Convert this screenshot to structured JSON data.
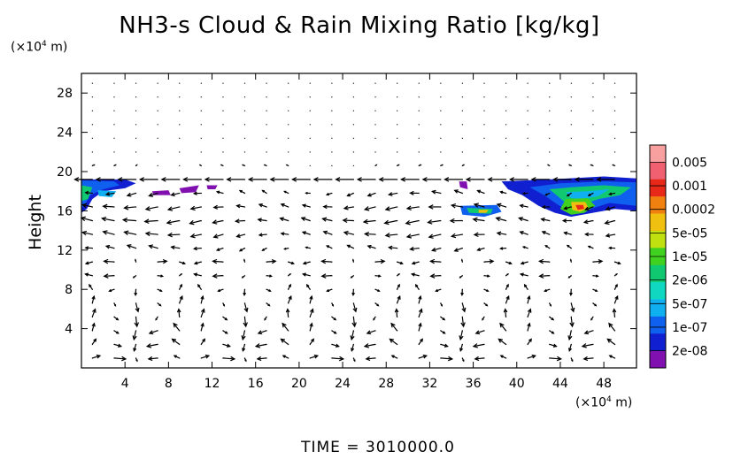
{
  "header": {
    "title": "NH3-s Cloud & Rain Mixing Ratio [kg/kg]",
    "y_unit_prefix": "(×10",
    "y_unit_exp": "4",
    "y_unit_suffix": " m)",
    "x_unit_prefix": "(×10",
    "x_unit_exp": "4",
    "x_unit_suffix": " m)"
  },
  "footer": {
    "time_label": "TIME",
    "time_sep": " = ",
    "time_value": "3010000.0"
  },
  "chart_data": {
    "type": "heatmap",
    "title": "NH3-s Cloud & Rain Mixing Ratio [kg/kg]",
    "xlabel": "",
    "ylabel": "Height",
    "xlim": [
      0,
      51
    ],
    "ylim": [
      0,
      30
    ],
    "x_ticks": [
      4,
      8,
      12,
      16,
      20,
      24,
      28,
      32,
      36,
      40,
      44,
      48
    ],
    "y_ticks": [
      4,
      8,
      12,
      16,
      20,
      24,
      28
    ],
    "colorbar": {
      "labels": [
        "0.005",
        "0.001",
        "0.0002",
        "5e-05",
        "1e-05",
        "2e-06",
        "5e-07",
        "1e-07",
        "2e-08"
      ],
      "colors": [
        "#f8a0a0",
        "#f06070",
        "#e82818",
        "#f08010",
        "#f0c010",
        "#c0e010",
        "#40d020",
        "#10c870",
        "#10d8c0",
        "#10b0f0",
        "#1060f0",
        "#1020d0",
        "#8010b0"
      ]
    },
    "cloud_regions": [
      {
        "points": [
          [
            0,
            19.2
          ],
          [
            4,
            19.2
          ],
          [
            5,
            18.8
          ],
          [
            4,
            18.3
          ],
          [
            2,
            18
          ],
          [
            1,
            17.2
          ],
          [
            0.5,
            16.2
          ],
          [
            0,
            15.8
          ]
        ],
        "level": 11
      },
      {
        "points": [
          [
            0,
            19.1
          ],
          [
            3,
            19.0
          ],
          [
            3.5,
            18.6
          ],
          [
            2,
            18.2
          ],
          [
            0.8,
            17.6
          ],
          [
            0.3,
            16.6
          ],
          [
            0,
            16.3
          ]
        ],
        "level": 10
      },
      {
        "points": [
          [
            0,
            18.6
          ],
          [
            1,
            18.4
          ],
          [
            0.6,
            17.2
          ],
          [
            0,
            17.0
          ]
        ],
        "level": 7
      },
      {
        "points": [
          [
            1.5,
            18.1
          ],
          [
            3.2,
            18.0
          ],
          [
            2.8,
            17.4
          ],
          [
            1.6,
            17.5
          ]
        ],
        "level": 9
      },
      {
        "points": [
          [
            6.5,
            18.0
          ],
          [
            8,
            18.1
          ],
          [
            8.2,
            17.6
          ],
          [
            6.6,
            17.6
          ]
        ],
        "level": 12
      },
      {
        "points": [
          [
            9,
            18.3
          ],
          [
            10.8,
            18.6
          ],
          [
            10.5,
            17.9
          ],
          [
            9.2,
            17.8
          ]
        ],
        "level": 12
      },
      {
        "points": [
          [
            11.5,
            18.6
          ],
          [
            12.5,
            18.6
          ],
          [
            12.3,
            18.2
          ],
          [
            11.6,
            18.2
          ]
        ],
        "level": 12
      },
      {
        "points": [
          [
            34.7,
            19.0
          ],
          [
            35.4,
            19.0
          ],
          [
            35.5,
            18.2
          ],
          [
            34.8,
            18.4
          ]
        ],
        "level": 12
      },
      {
        "points": [
          [
            34.8,
            16.5
          ],
          [
            38.2,
            16.6
          ],
          [
            38.6,
            15.9
          ],
          [
            37,
            15.4
          ],
          [
            35,
            15.6
          ]
        ],
        "level": 10
      },
      {
        "points": [
          [
            35.4,
            16.3
          ],
          [
            37.8,
            16.2
          ],
          [
            37.6,
            15.7
          ],
          [
            35.6,
            15.8
          ]
        ],
        "level": 7
      },
      {
        "points": [
          [
            36.5,
            16.1
          ],
          [
            37.4,
            16.1
          ],
          [
            37.2,
            15.8
          ],
          [
            36.5,
            15.8
          ]
        ],
        "level": 4
      },
      {
        "points": [
          [
            38.6,
            19.0
          ],
          [
            43,
            19.2
          ],
          [
            48,
            19.5
          ],
          [
            51,
            19.3
          ],
          [
            51,
            16.0
          ],
          [
            49,
            16.2
          ],
          [
            47,
            15.8
          ],
          [
            45,
            15.4
          ],
          [
            43.5,
            15.8
          ],
          [
            42,
            16.5
          ],
          [
            40.5,
            17.6
          ],
          [
            39.2,
            18.2
          ]
        ],
        "level": 11
      },
      {
        "points": [
          [
            41.2,
            18.4
          ],
          [
            44,
            18.8
          ],
          [
            48,
            19.0
          ],
          [
            51,
            18.9
          ],
          [
            51,
            16.5
          ],
          [
            48.5,
            16.8
          ],
          [
            46.8,
            16.2
          ],
          [
            45,
            15.9
          ],
          [
            43.8,
            16.6
          ],
          [
            42.5,
            17.6
          ]
        ],
        "level": 10
      },
      {
        "points": [
          [
            43,
            18.2
          ],
          [
            45,
            18.4
          ],
          [
            48,
            18.6
          ],
          [
            50.5,
            18.4
          ],
          [
            49.5,
            17.6
          ],
          [
            47.5,
            17.2
          ],
          [
            46,
            16.6
          ],
          [
            44.5,
            16.8
          ]
        ],
        "level": 7
      },
      {
        "points": [
          [
            44.5,
            17.9
          ],
          [
            46.5,
            18.0
          ],
          [
            48.5,
            18.2
          ],
          [
            47.5,
            17.5
          ],
          [
            46,
            17.2
          ],
          [
            45,
            17.3
          ]
        ],
        "level": 9
      },
      {
        "points": [
          [
            44.5,
            17.2
          ],
          [
            46.5,
            17.3
          ],
          [
            47.2,
            16.5
          ],
          [
            46.2,
            15.8
          ],
          [
            45,
            15.6
          ],
          [
            44,
            16.2
          ]
        ],
        "level": 6
      },
      {
        "points": [
          [
            45,
            16.9
          ],
          [
            46.3,
            16.9
          ],
          [
            46.6,
            16.3
          ],
          [
            45.8,
            15.9
          ],
          [
            45.1,
            16.1
          ]
        ],
        "level": 4
      },
      {
        "points": [
          [
            45.4,
            16.6
          ],
          [
            46.1,
            16.6
          ],
          [
            46.2,
            16.2
          ],
          [
            45.6,
            16.1
          ]
        ],
        "level": 2
      }
    ],
    "wind_field": [
      {
        "band": "upper",
        "y_range": [
          19,
          20
        ],
        "description": "strong westward jet near 19"
      },
      {
        "band": "mid",
        "y_range": [
          12,
          16
        ],
        "description": "westward flow"
      },
      {
        "band": "lower",
        "y_range": [
          0,
          10
        ],
        "description": "circulation cells"
      }
    ]
  },
  "axes": {
    "ylabel": "Height",
    "x_tick_labels": [
      "4",
      "8",
      "12",
      "16",
      "20",
      "24",
      "28",
      "32",
      "36",
      "40",
      "44",
      "48"
    ],
    "y_tick_labels": [
      "4",
      "8",
      "12",
      "16",
      "20",
      "24",
      "28"
    ]
  }
}
